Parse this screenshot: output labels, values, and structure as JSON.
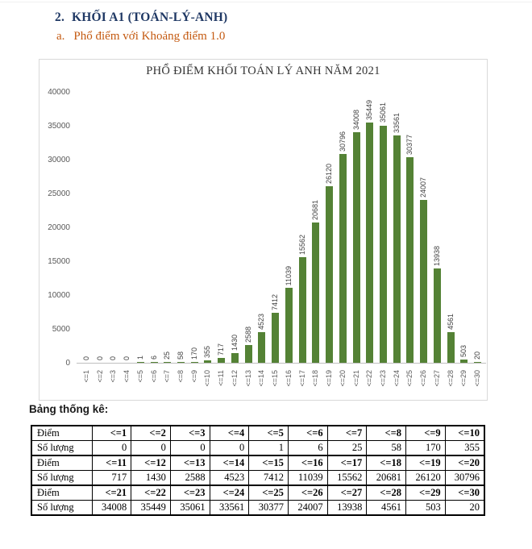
{
  "document": {
    "heading_number": "2.",
    "heading_text": "KHỐI A1 (TOÁN-LÝ-ANH)",
    "subheading_letter": "a.",
    "subheading_text": "Phổ điểm với Khoảng điểm 1.0",
    "table_caption": "Bảng thống kê:"
  },
  "chart_data": {
    "type": "bar",
    "title": "PHỔ ĐIỂM KHỐI TOÁN LÝ ANH NĂM 2021",
    "categories": [
      "<=1",
      "<=2",
      "<=3",
      "<=4",
      "<=5",
      "<=6",
      "<=7",
      "<=8",
      "<=9",
      "<=10",
      "<=11",
      "<=12",
      "<=13",
      "<=14",
      "<=15",
      "<=16",
      "<=17",
      "<=18",
      "<=19",
      "<=20",
      "<=21",
      "<=22",
      "<=23",
      "<=24",
      "<=25",
      "<=26",
      "<=27",
      "<=28",
      "<=29",
      "<=30"
    ],
    "values": [
      0,
      0,
      0,
      0,
      1,
      6,
      25,
      58,
      170,
      355,
      717,
      1430,
      2588,
      4523,
      7412,
      11039,
      15562,
      20681,
      26120,
      30796,
      34008,
      35449,
      35061,
      33561,
      30377,
      24007,
      13938,
      4561,
      503,
      20
    ],
    "xlabel": "",
    "ylabel": "",
    "ylim": [
      0,
      40000
    ],
    "ytick_step": 5000,
    "ytick_labels": [
      "0",
      "5000",
      "10000",
      "15000",
      "20000",
      "25000",
      "30000",
      "35000",
      "40000"
    ],
    "grid": false,
    "legend": false,
    "data_labels": true,
    "data_label_rotation": 90,
    "category_label_rotation": 90,
    "bar_color": "#548235"
  },
  "table": {
    "row_labels": [
      "Điểm",
      "Số lượng",
      "Điểm",
      "Số lượng",
      "Điểm",
      "Số lượng"
    ],
    "rows": [
      [
        "<=1",
        "<=2",
        "<=3",
        "<=4",
        "<=5",
        "<=6",
        "<=7",
        "<=8",
        "<=9",
        "<=10"
      ],
      [
        "0",
        "0",
        "0",
        "0",
        "1",
        "6",
        "25",
        "58",
        "170",
        "355"
      ],
      [
        "<=11",
        "<=12",
        "<=13",
        "<=14",
        "<=15",
        "<=16",
        "<=17",
        "<=18",
        "<=19",
        "<=20"
      ],
      [
        "717",
        "1430",
        "2588",
        "4523",
        "7412",
        "11039",
        "15562",
        "20681",
        "26120",
        "30796"
      ],
      [
        "<=21",
        "<=22",
        "<=23",
        "<=24",
        "<=25",
        "<=26",
        "<=27",
        "<=28",
        "<=29",
        "<=30"
      ],
      [
        "34008",
        "35449",
        "35061",
        "33561",
        "30377",
        "24007",
        "13938",
        "4561",
        "503",
        "20"
      ]
    ],
    "header_row_indices": [
      0,
      2,
      4
    ]
  },
  "colors": {
    "heading": "#1F3864",
    "subheading": "#C45A11",
    "bar": "#548235",
    "axis_text": "#595959",
    "data_label_text": "#404040",
    "chart_border": "#D9D9D9",
    "axis_line": "#BFBFBF",
    "table_border": "#000000"
  }
}
